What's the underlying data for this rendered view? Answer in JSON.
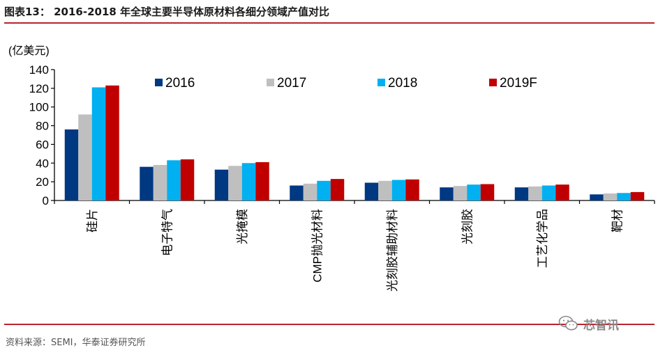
{
  "figure": {
    "title": "图表13：  2016-2018 年全球主要半导体原材料各细分领域产值对比",
    "source": "资料来源：SEMI，华泰证券研究所",
    "watermark": "芯智讯"
  },
  "chart_data": {
    "type": "bar",
    "unit_label": "(亿美元)",
    "categories": [
      "硅片",
      "电子特气",
      "光掩模",
      "CMP抛光材料",
      "光刻胶辅助材料",
      "光刻胶",
      "工艺化学品",
      "靶材"
    ],
    "series": [
      {
        "name": "2016",
        "color": "#003882",
        "values": [
          76,
          36,
          33,
          16,
          19,
          14,
          14,
          6.5
        ]
      },
      {
        "name": "2017",
        "color": "#bfbfbf",
        "values": [
          92,
          38,
          37,
          18,
          21,
          15.5,
          15,
          7.5
        ]
      },
      {
        "name": "2018",
        "color": "#00b0f0",
        "values": [
          121,
          43,
          40,
          21,
          22,
          17,
          16,
          8
        ]
      },
      {
        "name": "2019F",
        "color": "#c00000",
        "values": [
          123,
          44,
          41,
          23,
          22.5,
          17.5,
          17,
          9
        ]
      }
    ],
    "ylim": [
      0,
      140
    ],
    "yticks": [
      0,
      20,
      40,
      60,
      80,
      100,
      120,
      140
    ],
    "ytick_labels": [
      "0",
      "20",
      "40",
      "60",
      "80",
      "100",
      "120",
      "140"
    ],
    "legend_position": "top-right",
    "grid": false
  }
}
